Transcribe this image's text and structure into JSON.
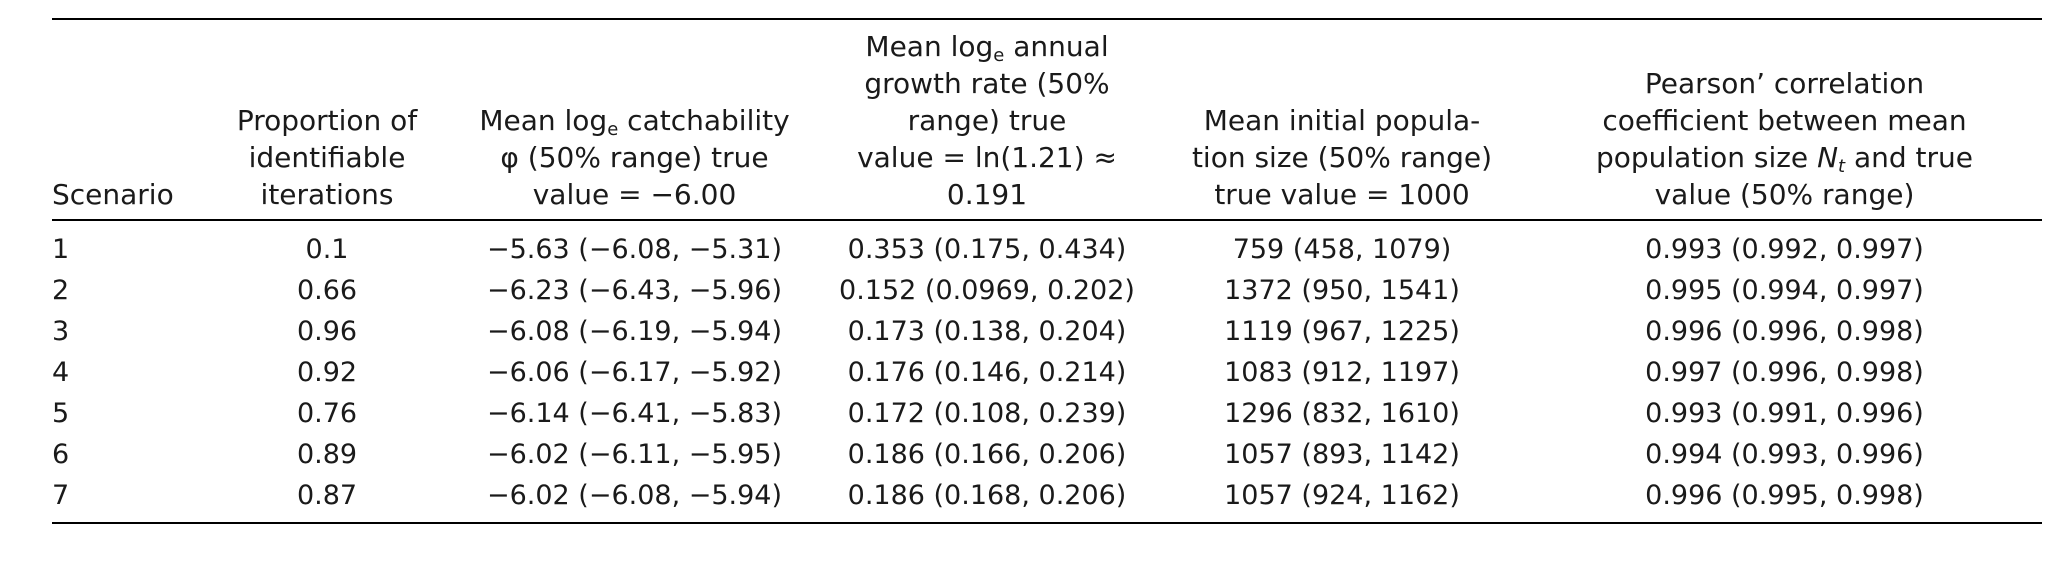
{
  "columns": [
    {
      "lines": [
        "Scenario"
      ]
    },
    {
      "lines": [
        "Proportion of",
        "identifiable",
        "iterations"
      ]
    },
    {
      "lines": [
        "",
        "φ (50% range) true",
        "value = −6.00"
      ],
      "lead": "Mean log",
      "sub": "e",
      "trail": " catchability"
    },
    {
      "lines": [
        "",
        "growth rate (50%",
        "range) true",
        "value = ln(1.21) ≈",
        "0.191"
      ],
      "lead": "Mean log",
      "sub": "e",
      "trail": " annual"
    },
    {
      "lines": [
        "Mean initial popula-",
        "tion size (50% range)",
        "true value = 1000"
      ]
    },
    {
      "lines": [
        "Pearson’ correlation",
        "coefficient between mean",
        "",
        "value (50% range)"
      ],
      "pre": "population size ",
      "var": "N",
      "varsub": "t",
      "post": " and true"
    }
  ],
  "rows": [
    [
      "1",
      "0.1",
      "−5.63 (−6.08, −5.31)",
      "0.353 (0.175, 0.434)",
      "759 (458, 1079)",
      "0.993 (0.992, 0.997)"
    ],
    [
      "2",
      "0.66",
      "−6.23 (−6.43, −5.96)",
      "0.152 (0.0969, 0.202)",
      "1372 (950, 1541)",
      "0.995 (0.994, 0.997)"
    ],
    [
      "3",
      "0.96",
      "−6.08 (−6.19, −5.94)",
      "0.173 (0.138, 0.204)",
      "1119 (967, 1225)",
      "0.996 (0.996, 0.998)"
    ],
    [
      "4",
      "0.92",
      "−6.06 (−6.17, −5.92)",
      "0.176 (0.146, 0.214)",
      "1083 (912, 1197)",
      "0.997 (0.996, 0.998)"
    ],
    [
      "5",
      "0.76",
      "−6.14 (−6.41, −5.83)",
      "0.172 (0.108, 0.239)",
      "1296 (832, 1610)",
      "0.993 (0.991, 0.996)"
    ],
    [
      "6",
      "0.89",
      "−6.02 (−6.11, −5.95)",
      "0.186 (0.166, 0.206)",
      "1057 (893, 1142)",
      "0.994 (0.993, 0.996)"
    ],
    [
      "7",
      "0.87",
      "−6.02 (−6.08, −5.94)",
      "0.186 (0.168, 0.206)",
      "1057 (924, 1162)",
      "0.996 (0.995, 0.998)"
    ]
  ]
}
